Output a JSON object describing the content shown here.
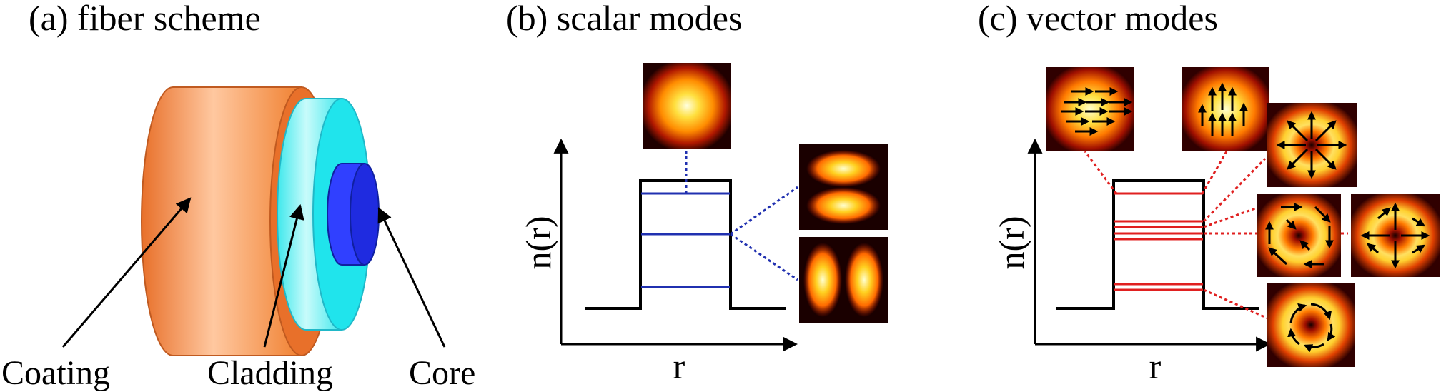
{
  "panels": {
    "a": {
      "title": "(a) fiber scheme",
      "labels": {
        "coating": "Coating",
        "cladding": "Cladding",
        "core": "Core"
      }
    },
    "b": {
      "title": "(b) scalar modes",
      "ylabel": "n(r)",
      "xlabel": "r"
    },
    "c": {
      "title": "(c) vector modes",
      "ylabel": "n(r)",
      "xlabel": "r"
    }
  },
  "colors": {
    "coating": "#f08030",
    "cladding": "#3fe8ec",
    "core": "#1f2be0",
    "scalar_lines": "#2030b0",
    "vector_lines": "#e02020"
  }
}
